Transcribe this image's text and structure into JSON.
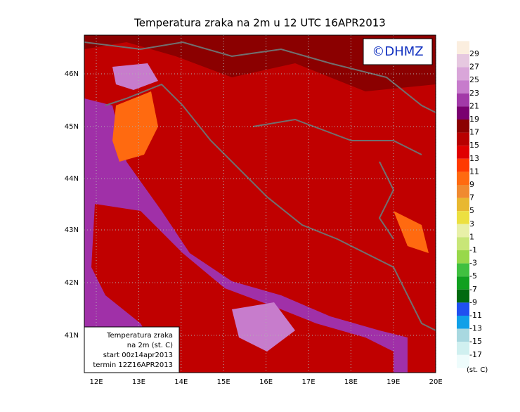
{
  "header": {
    "title": "Temperatura zraka na 2m u 12 UTC 16APR2013",
    "logo": "©DHMZ"
  },
  "map": {
    "lat_labels": [
      "46N",
      "45N",
      "44N",
      "43N",
      "42N",
      "41N"
    ],
    "lon_labels": [
      "12E",
      "13E",
      "14E",
      "15E",
      "16E",
      "17E",
      "18E",
      "19E",
      "20E"
    ]
  },
  "info_box": {
    "lines": [
      "Temperatura zraka",
      "na 2m (st. C)",
      "start 00z14apr2013",
      "termin 12Z16APR2013"
    ]
  },
  "colorbar": {
    "levels": [
      "29",
      "27",
      "25",
      "23",
      "21",
      "19",
      "17",
      "15",
      "13",
      "11",
      "9",
      "7",
      "5",
      "3",
      "1",
      "-1",
      "-3",
      "-5",
      "-7",
      "-9",
      "-11",
      "-13",
      "-15",
      "-17"
    ],
    "colors": [
      "#fbeedf",
      "#e6c8e0",
      "#d9a6d9",
      "#c77ccc",
      "#a23aa8",
      "#7a0070",
      "#8b0000",
      "#b80000",
      "#e00000",
      "#ff3a00",
      "#ff6a10",
      "#f08a30",
      "#e8b830",
      "#ece040",
      "#e8f0a8",
      "#c8e678",
      "#98d84a",
      "#40c040",
      "#10a020",
      "#006a10",
      "#2050f0",
      "#10a0e8",
      "#a8d8e0",
      "#d0f0f0",
      "#eefcfc"
    ],
    "unit": "(st. C)"
  }
}
